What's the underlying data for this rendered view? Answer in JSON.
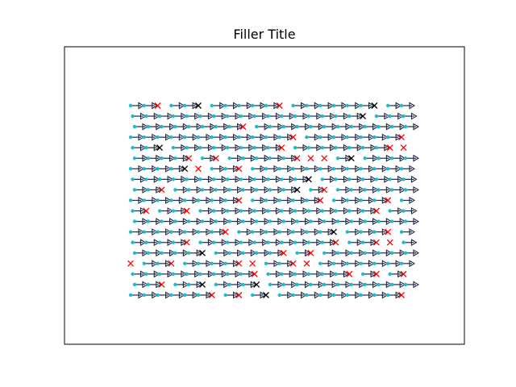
{
  "chart_data": {
    "type": "quiver",
    "title": "Filler Title",
    "xlabel": "",
    "ylabel": "",
    "grid": false,
    "axes_ticks": false,
    "rows": 19,
    "cols": 21,
    "x_range": [
      0,
      20
    ],
    "y_range": [
      0,
      18
    ],
    "arrow_direction": "right",
    "arrow_length": 1,
    "seed": 7,
    "colors": {
      "tail_dot": "#17becf",
      "arrow": "#1f2a44",
      "missing_red": "#ff0000",
      "missing_black": "#000000"
    },
    "markers": {
      "point": "cyan-dot",
      "arrow_head": "triangle-right",
      "missing": "x-mark"
    },
    "missing_fraction": 0.12
  }
}
